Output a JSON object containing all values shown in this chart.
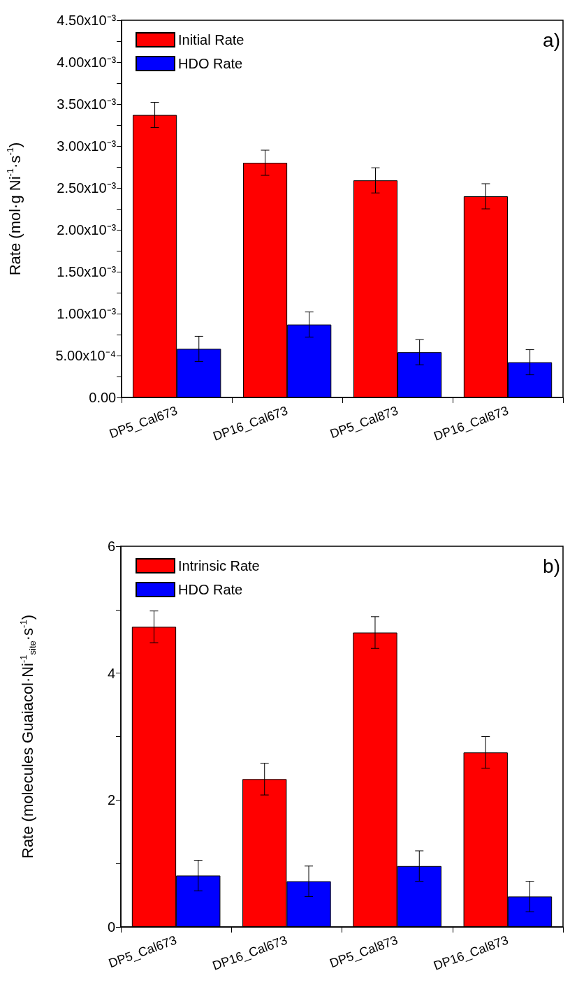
{
  "chart_data": [
    {
      "type": "bar",
      "ylabel": "Rate (mol·g Ni$^{-1}$·s$^{-1}$)",
      "annotations": [
        "a)"
      ],
      "categories": [
        "DP5_Cal673",
        "DP16_Cal673",
        "DP5_Cal873",
        "DP16_Cal873"
      ],
      "series": [
        {
          "name": "Initial Rate",
          "color": "#ff0000",
          "values": [
            0.00337,
            0.0028,
            0.00259,
            0.0024
          ],
          "errors": [
            0.00015,
            0.00015,
            0.00015,
            0.00015
          ]
        },
        {
          "name": "HDO Rate",
          "color": "#0000ff",
          "values": [
            0.00058,
            0.00087,
            0.00054,
            0.00042
          ],
          "errors": [
            0.00015,
            0.00015,
            0.00015,
            0.00015
          ]
        }
      ],
      "ylim": [
        0,
        0.0045
      ],
      "yticks": [
        {
          "value": 0,
          "label": "0.00"
        },
        {
          "value": 0.00025,
          "label": null
        },
        {
          "value": 0.0005,
          "label": "5.00x10⁻⁴"
        },
        {
          "value": 0.00075,
          "label": null
        },
        {
          "value": 0.001,
          "label": "1.00x10⁻³"
        },
        {
          "value": 0.00125,
          "label": null
        },
        {
          "value": 0.0015,
          "label": "1.50x10⁻³"
        },
        {
          "value": 0.00175,
          "label": null
        },
        {
          "value": 0.002,
          "label": "2.00x10⁻³"
        },
        {
          "value": 0.00225,
          "label": null
        },
        {
          "value": 0.0025,
          "label": "2.50x10⁻³"
        },
        {
          "value": 0.00275,
          "label": null
        },
        {
          "value": 0.003,
          "label": "3.00x10⁻³"
        },
        {
          "value": 0.00325,
          "label": null
        },
        {
          "value": 0.0035,
          "label": "3.50x10⁻³"
        },
        {
          "value": 0.00375,
          "label": null
        },
        {
          "value": 0.004,
          "label": "4.00x10⁻³"
        },
        {
          "value": 0.00425,
          "label": null
        },
        {
          "value": 0.0045,
          "label": "4.50x10⁻³"
        }
      ],
      "grid": false,
      "legend": "top left"
    },
    {
      "type": "bar",
      "ylabel": "Rate (molecules Guaiacol·Ni$^{-1}$$_{site}$·s$^{-1}$)",
      "annotations": [
        "b)"
      ],
      "categories": [
        "DP5_Cal673",
        "DP16_Cal673",
        "DP5_Cal873",
        "DP16_Cal873"
      ],
      "series": [
        {
          "name": "Intrinsic Rate",
          "color": "#ff0000",
          "values": [
            4.73,
            2.33,
            4.64,
            2.75
          ],
          "errors": [
            0.25,
            0.25,
            0.25,
            0.25
          ]
        },
        {
          "name": "HDO Rate",
          "color": "#0000ff",
          "values": [
            0.81,
            0.72,
            0.96,
            0.48
          ],
          "errors": [
            0.24,
            0.24,
            0.24,
            0.24
          ]
        }
      ],
      "ylim": [
        0,
        6
      ],
      "yticks": [
        0,
        {
          "value": 1,
          "label": null
        },
        2,
        {
          "value": 3,
          "label": null
        },
        4,
        {
          "value": 5,
          "label": null
        },
        6
      ],
      "grid": false,
      "legend": "top left"
    }
  ]
}
